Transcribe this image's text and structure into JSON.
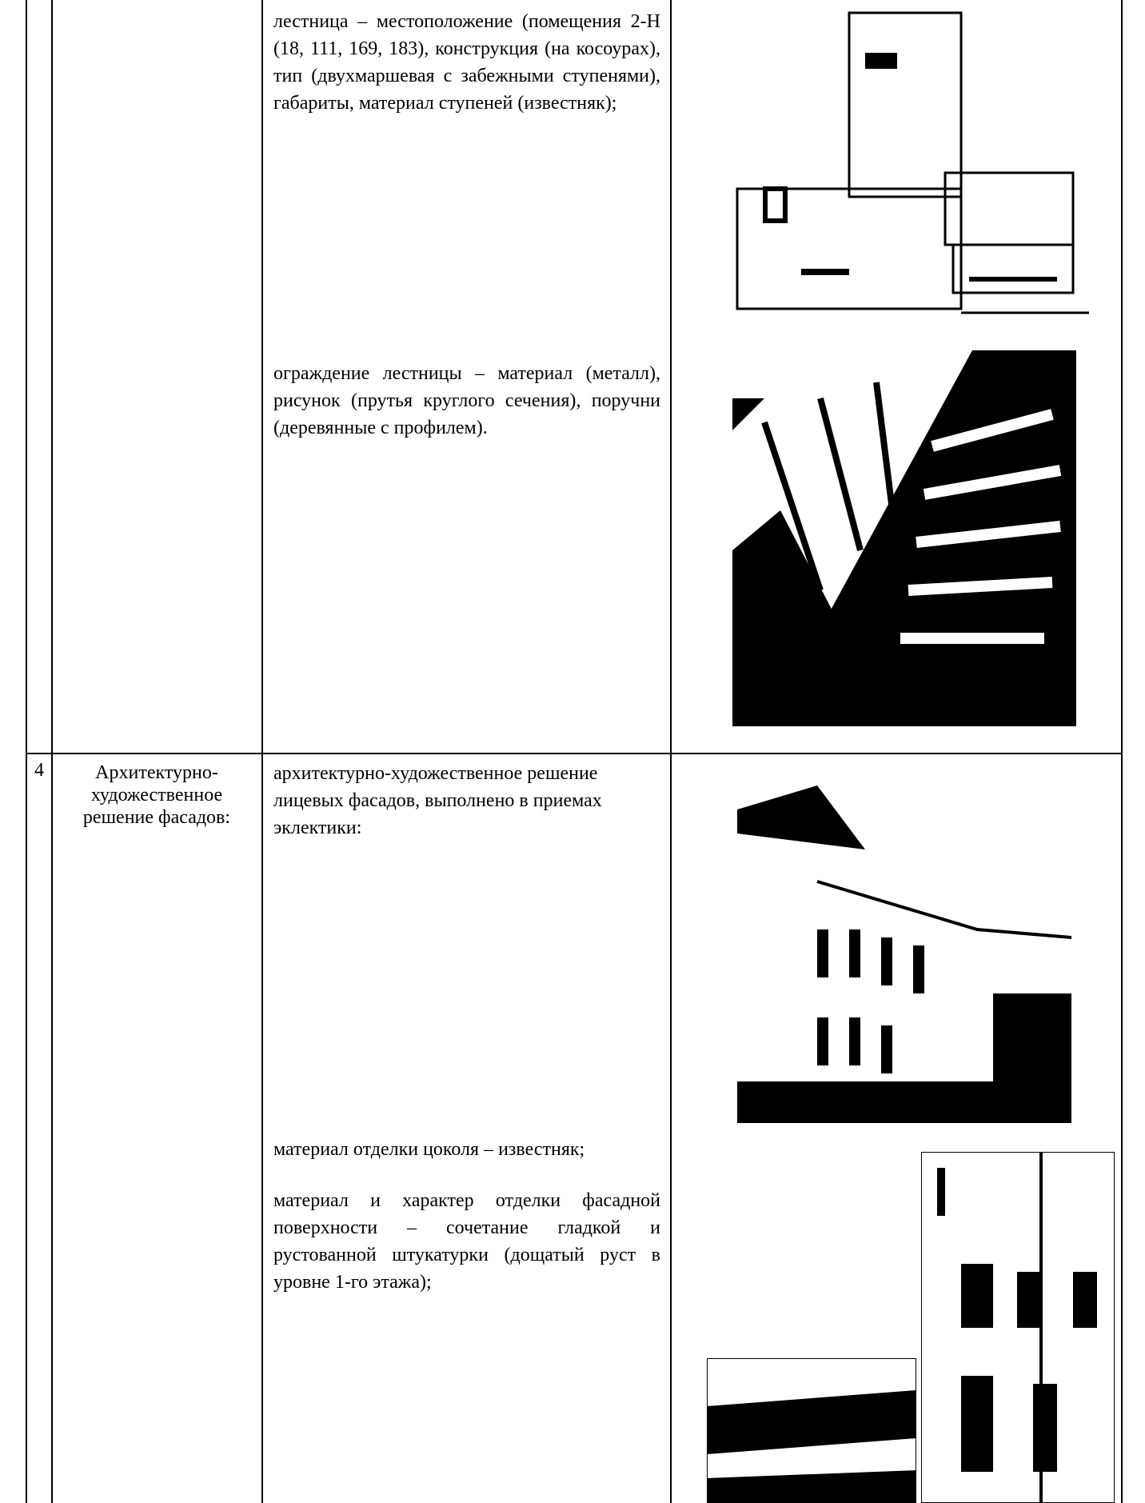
{
  "table": {
    "rows": [
      {
        "number": "",
        "name": "",
        "items": [
          "лестница – местоположение (помещения 2-Н (18, 111, 169, 183), конструкция (на косоурах), тип (двухмаршевая с забежными ступенями), габариты, материал ступеней (известняк);",
          "ограждение лестницы – материал (металл), рисунок (прутья круглого сечения), поручни (деревянные с профилем)."
        ]
      },
      {
        "number": "4",
        "name": "Архитектурно-художественное решение фасадов:",
        "items": [
          "архитектурно-художественное решение лицевых фасадов, выполнено в приемах эклектики:",
          "материал отделки цоколя – известняк;",
          "материал и характер отделки фасадной поверхности – сочетание гладкой и рустованной штукатурки (дощатый руст в уровне 1-го этажа);"
        ]
      }
    ]
  }
}
